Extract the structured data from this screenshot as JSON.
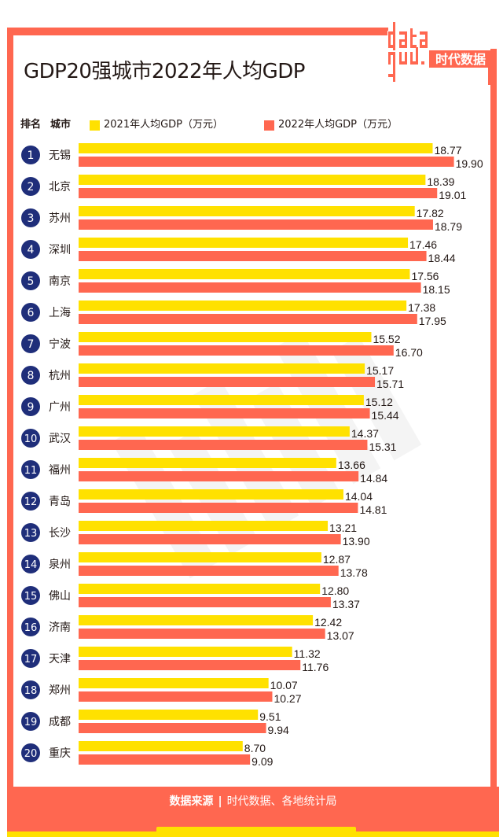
{
  "header": {
    "title": "GDP20强城市2022年人均GDP",
    "logo_text": "data",
    "logo_cn": "时代数据"
  },
  "legend": {
    "rank_label": "排名",
    "city_label": "城市",
    "series_2021": "2021年人均GDP（万元）",
    "series_2022": "2022年人均GDP（万元）"
  },
  "colors": {
    "series_2021": "#FFE100",
    "series_2022": "#FF6750",
    "rank_badge": "#1F2E7A",
    "frame": "#FF6750"
  },
  "footer": {
    "source_label": "数据来源",
    "separator": "|",
    "source_text": "时代数据、各地统计局"
  },
  "chart_data": {
    "type": "bar",
    "orientation": "horizontal",
    "title": "GDP20强城市2022年人均GDP",
    "xlabel": "",
    "ylabel": "",
    "unit": "万元",
    "xlim": [
      0,
      20
    ],
    "grid": false,
    "legend_position": "top",
    "categories": [
      "无锡",
      "北京",
      "苏州",
      "深圳",
      "南京",
      "上海",
      "宁波",
      "杭州",
      "广州",
      "武汉",
      "福州",
      "青岛",
      "长沙",
      "泉州",
      "佛山",
      "济南",
      "天津",
      "郑州",
      "成都",
      "重庆"
    ],
    "ranks": [
      "1",
      "2",
      "3",
      "4",
      "5",
      "6",
      "7",
      "8",
      "9",
      "10",
      "11",
      "12",
      "13",
      "14",
      "15",
      "16",
      "17",
      "18",
      "19",
      "20"
    ],
    "series": [
      {
        "name": "2021年人均GDP（万元）",
        "color": "#FFE100",
        "values": [
          18.77,
          18.39,
          17.82,
          17.46,
          17.56,
          17.38,
          15.52,
          15.17,
          15.12,
          14.37,
          13.66,
          14.04,
          13.21,
          12.87,
          12.8,
          12.42,
          11.32,
          10.07,
          9.51,
          8.7
        ],
        "labels": [
          "18.77",
          "18.39",
          "17.82",
          "17.46",
          "17.56",
          "17.38",
          "15.52",
          "15.17",
          "15.12",
          "14.37",
          "13.66",
          "14.04",
          "13.21",
          "12.87",
          "12.80",
          "12.42",
          "11.32",
          "10.07",
          "9.51",
          "8.70"
        ]
      },
      {
        "name": "2022年人均GDP（万元）",
        "color": "#FF6750",
        "values": [
          19.9,
          19.01,
          18.79,
          18.44,
          18.15,
          17.95,
          16.7,
          15.71,
          15.44,
          15.31,
          14.84,
          14.81,
          13.9,
          13.78,
          13.37,
          13.07,
          11.76,
          10.27,
          9.94,
          9.09
        ],
        "labels": [
          "19.90",
          "19.01",
          "18.79",
          "18.44",
          "18.15",
          "17.95",
          "16.70",
          "15.71",
          "15.44",
          "15.31",
          "14.84",
          "14.81",
          "13.90",
          "13.78",
          "13.37",
          "13.07",
          "11.76",
          "10.27",
          "9.94",
          "9.09"
        ]
      }
    ]
  }
}
